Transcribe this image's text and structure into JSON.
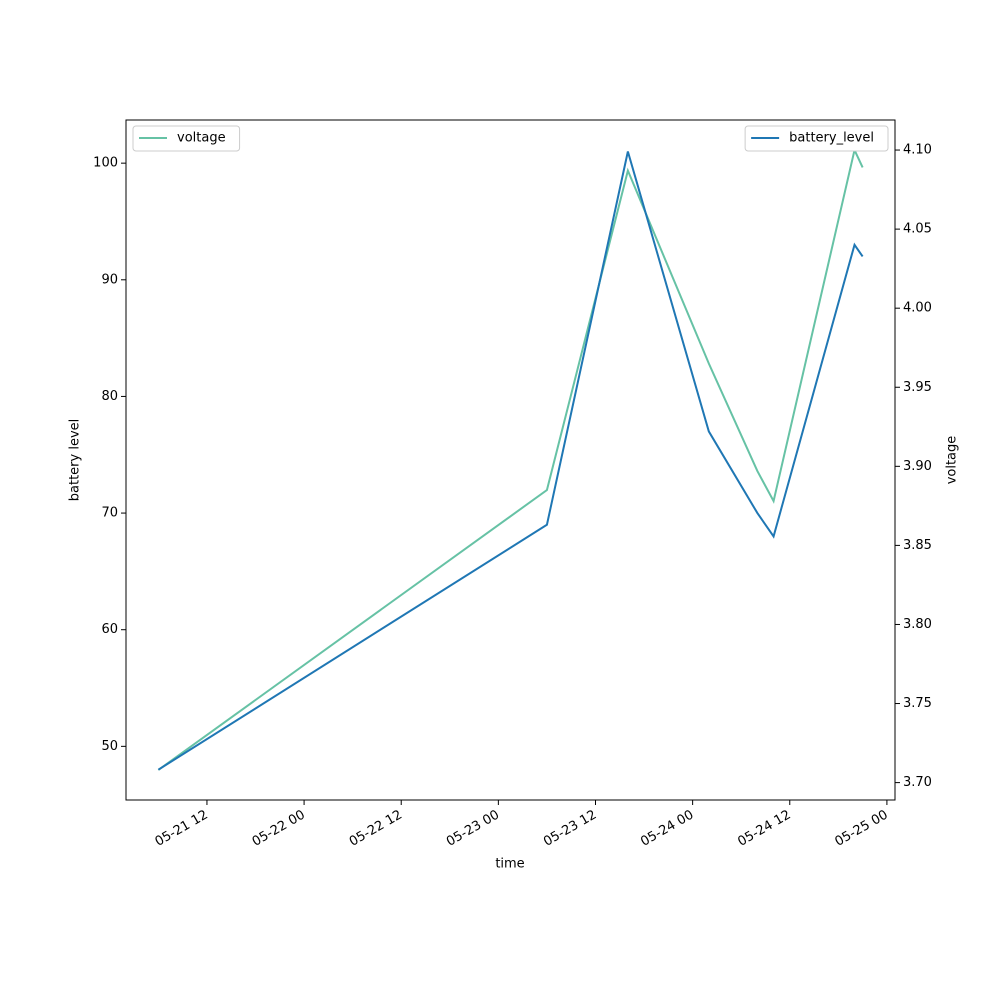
{
  "chart_data": {
    "type": "line",
    "x": [
      "05-21 06",
      "05-23 06",
      "05-23 16",
      "05-24 02",
      "05-24 08",
      "05-24 10",
      "05-24 20",
      "05-24 21"
    ],
    "xlabel": "time",
    "ylabel": "battery level",
    "y2label": "voltage",
    "xlim": [
      "05-21 02",
      "05-25 01"
    ],
    "xticks": [
      "05-21 12",
      "05-22 00",
      "05-22 12",
      "05-23 00",
      "05-23 12",
      "05-24 00",
      "05-24 12",
      "05-25 00"
    ],
    "ylim": [
      45.4,
      103.7
    ],
    "yticks": [
      50,
      60,
      70,
      80,
      90,
      100
    ],
    "y2lim": [
      3.689,
      4.119
    ],
    "y2ticks": [
      {
        "value": 3.7,
        "label": "3.70"
      },
      3.75,
      {
        "value": 3.8,
        "label": "3.80"
      },
      3.85,
      {
        "value": 3.9,
        "label": "3.90"
      },
      3.95,
      {
        "value": 4.0,
        "label": "4.00"
      },
      4.05,
      {
        "value": 4.1,
        "label": "4.10"
      }
    ],
    "series": [
      {
        "name": "voltage",
        "color": "#66c2a5",
        "axis": "y2",
        "legend": "upper left",
        "values": [
          3.708,
          3.885,
          4.087,
          3.965,
          3.897,
          3.878,
          4.1,
          4.089
        ]
      },
      {
        "name": "battery_level",
        "color": "#1f77b4",
        "axis": "y",
        "legend": "upper right",
        "values": [
          48,
          69,
          101,
          77,
          70,
          68,
          93,
          92
        ]
      }
    ]
  }
}
